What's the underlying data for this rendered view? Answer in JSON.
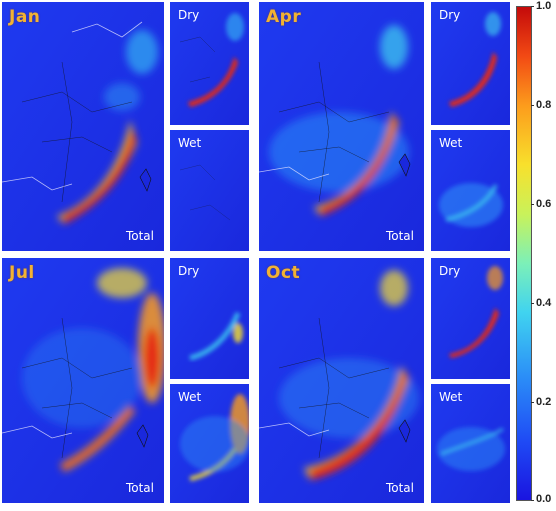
{
  "months": [
    {
      "label": "Jan",
      "total_label": "Total",
      "dry_label": "Dry",
      "wet_label": "Wet"
    },
    {
      "label": "Apr",
      "total_label": "Total",
      "dry_label": "Dry",
      "wet_label": "Wet"
    },
    {
      "label": "Jul",
      "total_label": "Total",
      "dry_label": "Dry",
      "wet_label": "Wet"
    },
    {
      "label": "Oct",
      "total_label": "Total",
      "dry_label": "Dry",
      "wet_label": "Wet"
    }
  ],
  "colorbar": {
    "ticks": [
      "1.0",
      "0.8",
      "0.6",
      "0.4",
      "0.2",
      "0.0"
    ],
    "colors": [
      "#1a14e0",
      "#2b8ef7",
      "#40d3f0",
      "#c9f25a",
      "#f8e02c",
      "#fc9c1c",
      "#c40a0a"
    ]
  }
}
